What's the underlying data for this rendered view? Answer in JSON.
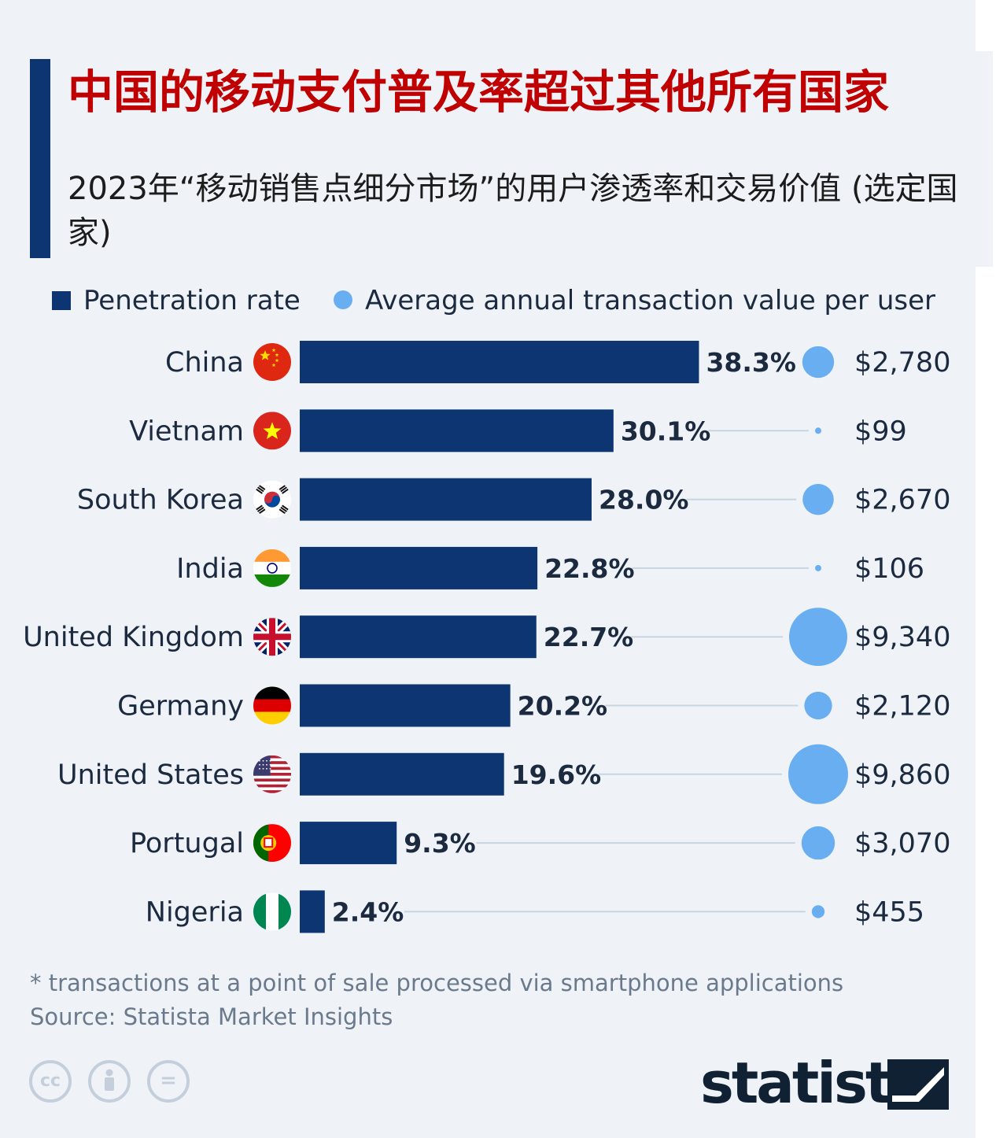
{
  "colors": {
    "accent": "#0d3572",
    "title": "#c00000",
    "bar": "#0d3572",
    "bubble": "#6aaef2",
    "connector": "#c8d5e0",
    "background": "#eff3f8"
  },
  "header": {
    "title": "中国的移动支付普及率超过其他所有国家",
    "subtitle": "2023年“移动销售点细分市场”的用户渗透率和交易价值 (选定国家)"
  },
  "legend": {
    "bar_label": "Penetration rate",
    "dot_label": "Average annual transaction value per user"
  },
  "chart_data": {
    "type": "bar",
    "orientation": "horizontal",
    "categories": [
      "China",
      "Vietnam",
      "South Korea",
      "India",
      "United Kingdom",
      "Germany",
      "United States",
      "Portugal",
      "Nigeria"
    ],
    "series": [
      {
        "name": "Penetration rate",
        "values": [
          38.3,
          30.1,
          28.0,
          22.8,
          22.7,
          20.2,
          19.6,
          9.3,
          2.4
        ],
        "labels": [
          "38.3%",
          "30.1%",
          "28.0%",
          "22.8%",
          "22.7%",
          "20.2%",
          "19.6%",
          "9.3%",
          "2.4%"
        ]
      },
      {
        "name": "Average annual transaction value per user",
        "values": [
          2780,
          99,
          2670,
          106,
          9340,
          2120,
          9860,
          3070,
          455
        ],
        "labels": [
          "$2,780",
          "$99",
          "$2,670",
          "$106",
          "$9,340",
          "$2,120",
          "$9,860",
          "$3,070",
          "$455"
        ]
      }
    ],
    "flags": [
      "china-flag-icon",
      "vietnam-flag-icon",
      "south-korea-flag-icon",
      "india-flag-icon",
      "united-kingdom-flag-icon",
      "germany-flag-icon",
      "united-states-flag-icon",
      "portugal-flag-icon",
      "nigeria-flag-icon"
    ],
    "legend_position": "top-left",
    "grid": false
  },
  "footer": {
    "footnote": "* transactions at a point of sale processed via smartphone applications",
    "source": "Source: Statista Market Insights",
    "license_icons": [
      "cc-icon",
      "by-icon",
      "nd-icon"
    ],
    "brand": "statista"
  }
}
